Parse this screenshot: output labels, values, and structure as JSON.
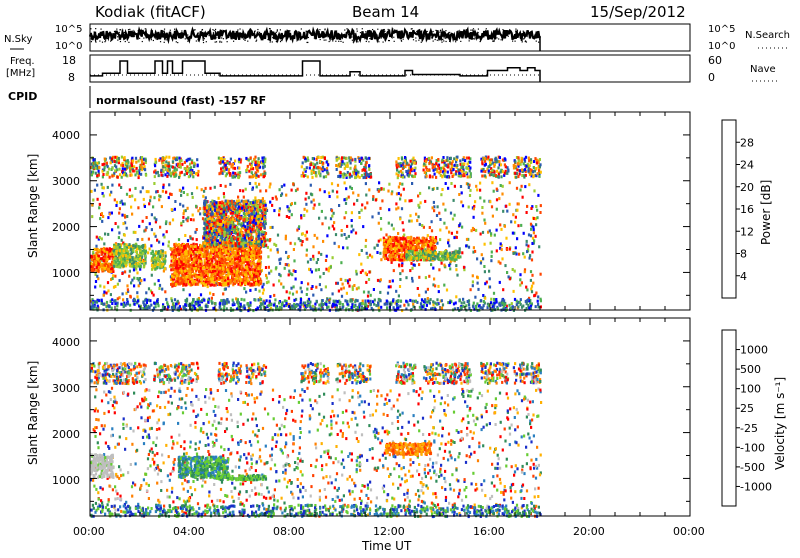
{
  "header": {
    "station": "Kodiak (fitACF)",
    "beam": "Beam 14",
    "date": "15/Sep/2012"
  },
  "top_panels": {
    "noise": {
      "left_label": "N.Sky",
      "right_label": "N.Search",
      "left_ticks": [
        "10^5",
        "10^0"
      ],
      "right_ticks": [
        "10^5",
        "10^0"
      ]
    },
    "freq": {
      "left_label_1": "Freq.",
      "left_label_2": "[MHz]",
      "left_ticks": [
        "18",
        "8"
      ],
      "right_ticks": [
        "60",
        "0"
      ],
      "right_label": "Nave"
    },
    "cpid": {
      "label": "CPID",
      "text": "normalsound (fast) -157 RF"
    }
  },
  "panels": {
    "power": {
      "ylabel": "Slant Range [km]",
      "yticks": [
        "4000",
        "3000",
        "2000",
        "1000"
      ],
      "colorbar_label": "Power [dB]",
      "colorbar_ticks": [
        "28",
        "24",
        "20",
        "16",
        "12",
        "8",
        "4"
      ],
      "colors": [
        "#0000ff",
        "#2a5ab0",
        "#3a8a6a",
        "#4caf50",
        "#9acd32",
        "#ffc000",
        "#ff8c00",
        "#ff4500",
        "#ff0000"
      ]
    },
    "velocity": {
      "ylabel": "Slant Range [km]",
      "yticks": [
        "4000",
        "3000",
        "2000",
        "1000"
      ],
      "colorbar_label": "Velocity [m s⁻¹]",
      "colorbar_ticks": [
        "1000",
        "500",
        "100",
        "25",
        "-25",
        "-100",
        "-500",
        "-1000"
      ],
      "colors": [
        "#1a2fc9",
        "#2a7fc0",
        "#2e8b57",
        "#66cc33",
        "#bfbfbf",
        "#ffb000",
        "#ff8000",
        "#ff4000",
        "#ff0000"
      ]
    }
  },
  "xaxis": {
    "label": "Time UT",
    "ticks": [
      "00:00",
      "04:00",
      "08:00",
      "12:00",
      "16:00",
      "20:00",
      "00:00"
    ]
  },
  "chart_data": {
    "type": "heatmap",
    "title": "Kodiak (fitACF)  Beam 14  15/Sep/2012",
    "xlabel": "Time UT",
    "ylabel": "Slant Range [km]",
    "xlim_hours": [
      0,
      24
    ],
    "ylim_km": [
      180,
      4500
    ],
    "freq_mhz_ylim": [
      8,
      18
    ],
    "nave_ylim": [
      0,
      60
    ],
    "freq_steps": [
      {
        "t0": 0.0,
        "t1": 0.5,
        "mhz": 11
      },
      {
        "t0": 0.5,
        "t1": 1.2,
        "mhz": 12
      },
      {
        "t0": 1.2,
        "t1": 1.5,
        "mhz": 16.5
      },
      {
        "t0": 1.5,
        "t1": 2.6,
        "mhz": 12
      },
      {
        "t0": 2.6,
        "t1": 2.9,
        "mhz": 16.5
      },
      {
        "t0": 2.9,
        "t1": 3.1,
        "mhz": 12
      },
      {
        "t0": 3.1,
        "t1": 3.3,
        "mhz": 16.5
      },
      {
        "t0": 3.3,
        "t1": 3.7,
        "mhz": 12
      },
      {
        "t0": 3.7,
        "t1": 4.6,
        "mhz": 16.5
      },
      {
        "t0": 4.6,
        "t1": 5.2,
        "mhz": 12
      },
      {
        "t0": 5.2,
        "t1": 8.5,
        "mhz": 11
      },
      {
        "t0": 8.5,
        "t1": 9.2,
        "mhz": 16.5
      },
      {
        "t0": 9.2,
        "t1": 10.4,
        "mhz": 11
      },
      {
        "t0": 10.4,
        "t1": 10.8,
        "mhz": 12.5
      },
      {
        "t0": 10.8,
        "t1": 12.6,
        "mhz": 11
      },
      {
        "t0": 12.6,
        "t1": 12.9,
        "mhz": 13
      },
      {
        "t0": 12.9,
        "t1": 14.8,
        "mhz": 11.5
      },
      {
        "t0": 14.8,
        "t1": 15.9,
        "mhz": 11
      },
      {
        "t0": 15.9,
        "t1": 16.7,
        "mhz": 13
      },
      {
        "t0": 16.7,
        "t1": 17.2,
        "mhz": 14
      },
      {
        "t0": 17.2,
        "t1": 17.5,
        "mhz": 13
      },
      {
        "t0": 17.5,
        "t1": 17.8,
        "mhz": 14
      },
      {
        "t0": 17.8,
        "t1": 18.0,
        "mhz": 13
      }
    ],
    "data_end_hour": 18.0,
    "power_regions": [
      {
        "t0": 0.0,
        "t1": 0.9,
        "r0": 1050,
        "r1": 1550,
        "level": "high"
      },
      {
        "t0": 0.9,
        "t1": 2.2,
        "r0": 1150,
        "r1": 1650,
        "level": "mid"
      },
      {
        "t0": 2.4,
        "t1": 3.0,
        "r0": 1100,
        "r1": 1500,
        "level": "mid"
      },
      {
        "t0": 3.2,
        "t1": 6.8,
        "r0": 750,
        "r1": 1650,
        "level": "high"
      },
      {
        "t0": 4.5,
        "t1": 7.0,
        "r0": 1600,
        "r1": 2600,
        "level": "mixed"
      },
      {
        "t0": 11.7,
        "t1": 13.8,
        "r0": 1300,
        "r1": 1800,
        "level": "high"
      },
      {
        "t0": 12.6,
        "t1": 14.8,
        "r0": 1300,
        "r1": 1500,
        "level": "mid"
      }
    ],
    "velocity_regions": [
      {
        "t0": 0.0,
        "t1": 0.9,
        "r0": 1050,
        "r1": 1550,
        "class": "near-zero"
      },
      {
        "t0": 3.5,
        "t1": 5.5,
        "r0": 1050,
        "r1": 1500,
        "class": "toward"
      },
      {
        "t0": 5.0,
        "t1": 7.0,
        "r0": 1000,
        "r1": 1100,
        "class": "toward-slow"
      },
      {
        "t0": 11.8,
        "t1": 13.6,
        "r0": 1550,
        "r1": 1800,
        "class": "away"
      }
    ],
    "scatter_bands": [
      {
        "r0": 3100,
        "r1": 3550
      }
    ]
  }
}
